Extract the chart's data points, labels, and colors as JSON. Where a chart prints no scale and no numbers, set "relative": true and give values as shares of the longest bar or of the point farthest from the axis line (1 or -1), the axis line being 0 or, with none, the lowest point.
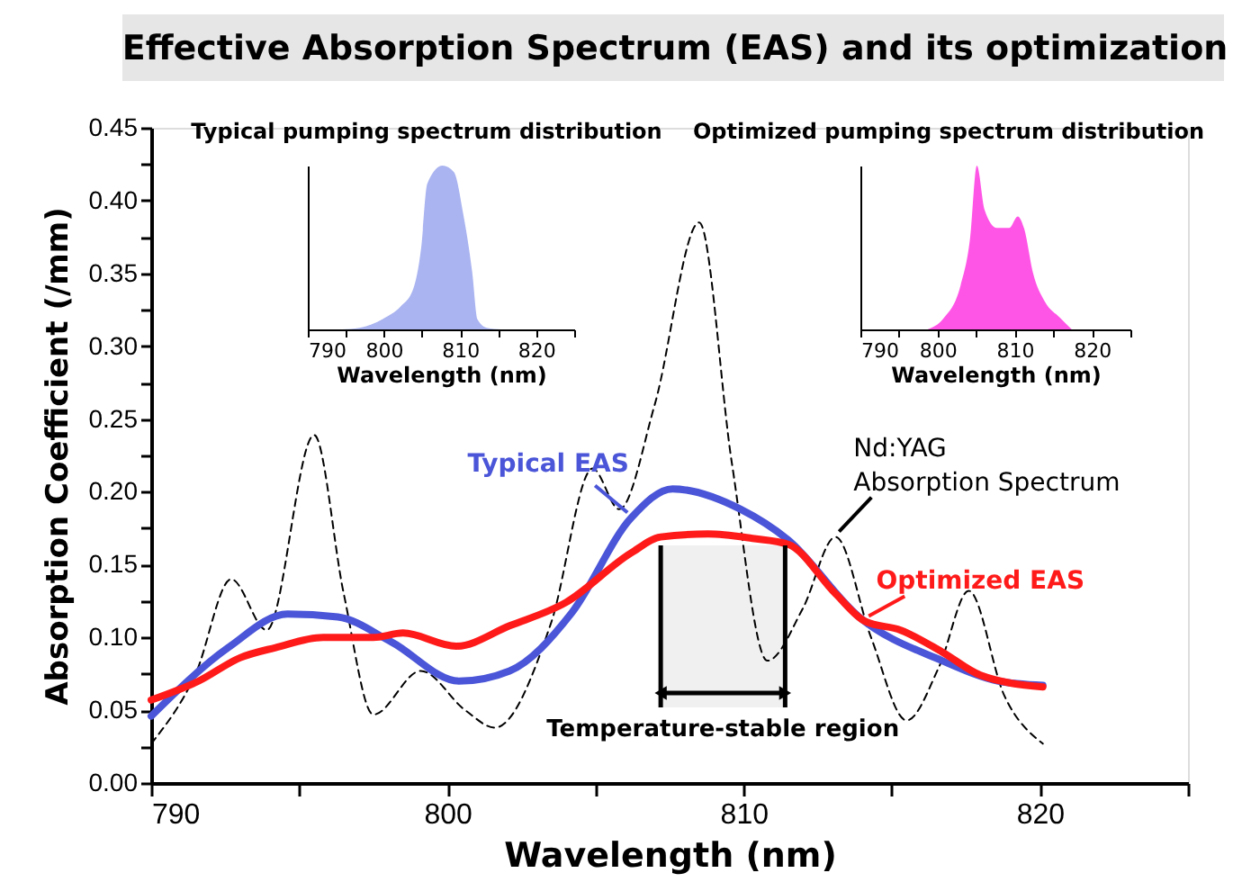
{
  "chart_data": [
    {
      "type": "line",
      "title": "Effective Absorption Spectrum (EAS) and its optimization",
      "xlabel": "Wavelength (nm)",
      "ylabel": "Absorption Coefficient (/mm)",
      "xlim": [
        790,
        825
      ],
      "xticks": [
        790,
        {
          "value": 795,
          "label": null
        },
        800,
        {
          "value": 805,
          "label": null
        },
        810,
        {
          "value": 815,
          "label": null
        },
        820,
        {
          "value": 825,
          "label": null
        }
      ],
      "ylim": [
        0,
        0.45
      ],
      "yticks": [
        {
          "value": 0,
          "label": "0.00"
        },
        {
          "value": 0.025,
          "label": null
        },
        {
          "value": 0.05,
          "label": "0.05"
        },
        {
          "value": 0.075,
          "label": null
        },
        {
          "value": 0.1,
          "label": "0.10"
        },
        {
          "value": 0.125,
          "label": null
        },
        {
          "value": 0.15,
          "label": "0.15"
        },
        {
          "value": 0.175,
          "label": null
        },
        {
          "value": 0.2,
          "label": "0.20"
        },
        {
          "value": 0.225,
          "label": null
        },
        {
          "value": 0.25,
          "label": "0.25"
        },
        {
          "value": 0.275,
          "label": null
        },
        {
          "value": 0.3,
          "label": "0.30"
        },
        {
          "value": 0.325,
          "label": null
        },
        {
          "value": 0.35,
          "label": "0.35"
        },
        {
          "value": 0.375,
          "label": null
        },
        {
          "value": 0.4,
          "label": "0.40"
        },
        {
          "value": 0.425,
          "label": null
        },
        {
          "value": 0.45,
          "label": "0.45"
        }
      ],
      "series": [
        {
          "name": "Nd:YAG\nAbsorption Spectrum",
          "color": "#000000",
          "line_style": "dashed",
          "x": [
            790,
            791.5,
            792.7,
            793.9,
            795.5,
            796.5,
            797.5,
            799.1,
            800.6,
            801.6,
            803.5,
            804.9,
            805.8,
            807.0,
            808.5,
            809.6,
            810.8,
            812.0,
            813.1,
            814.3,
            815.5,
            816.6,
            817.6,
            818.8,
            820.1
          ],
          "values": [
            0.027,
            0.075,
            0.14,
            0.105,
            0.239,
            0.13,
            0.047,
            0.077,
            0.05,
            0.038,
            0.11,
            0.216,
            0.188,
            0.26,
            0.385,
            0.22,
            0.084,
            0.12,
            0.169,
            0.1,
            0.043,
            0.08,
            0.132,
            0.06,
            0.027
          ]
        },
        {
          "name": "Typical EAS",
          "color": "#4a55d8",
          "line_style": "solid",
          "x": [
            790,
            792.6,
            794.6,
            796.3,
            798.1,
            800.4,
            802.1,
            804.2,
            806.2,
            807.6,
            809.9,
            811.5,
            813.9,
            816.7,
            818.6,
            820.1
          ],
          "values": [
            0.046,
            0.093,
            0.116,
            0.114,
            0.097,
            0.07,
            0.077,
            0.117,
            0.182,
            0.202,
            0.188,
            0.167,
            0.114,
            0.084,
            0.07,
            0.067
          ]
        },
        {
          "name": "Optimized EAS",
          "color": "#ff1a1a",
          "line_style": "solid",
          "x": [
            790,
            791.6,
            793.0,
            794.2,
            795.8,
            797.5,
            798.5,
            800.3,
            802.1,
            804.0,
            806.2,
            807.2,
            808.8,
            810.3,
            811.5,
            813.1,
            814.1,
            815.3,
            816.7,
            818.0,
            820.1
          ],
          "values": [
            0.057,
            0.07,
            0.086,
            0.093,
            0.1,
            0.1,
            0.103,
            0.094,
            0.108,
            0.124,
            0.158,
            0.169,
            0.171,
            0.168,
            0.164,
            0.13,
            0.111,
            0.105,
            0.09,
            0.074,
            0.066
          ]
        }
      ],
      "bands": [
        {
          "axis": "x",
          "from": 807.2,
          "to": 811.4,
          "label": "Temperature-stable region",
          "color": "#000000"
        }
      ]
    },
    {
      "type": "area",
      "relative": true,
      "title": "Typical pumping spectrum distribution",
      "xlabel": "Wavelength (nm)",
      "color": "#aab4f0",
      "xlim": [
        790,
        825
      ],
      "xticks": [
        790,
        {
          "value": 795,
          "label": null
        },
        800,
        {
          "value": 805,
          "label": null
        },
        810,
        {
          "value": 815,
          "label": null
        },
        820,
        {
          "value": 825,
          "label": null
        }
      ],
      "x": [
        794.5,
        796.8,
        799.9,
        802.2,
        803.8,
        804.9,
        805.7,
        807.7,
        809.2,
        810.4,
        811.6,
        812.3,
        813.5,
        815.4
      ],
      "values": [
        0,
        0.01,
        0.065,
        0.14,
        0.24,
        0.5,
        0.89,
        1.0,
        0.96,
        0.71,
        0.35,
        0.06,
        0.01,
        0
      ]
    },
    {
      "type": "area",
      "relative": true,
      "title": "Optimized pumping spectrum distribution",
      "xlabel": "Wavelength (nm)",
      "color": "#ff55e6",
      "xlim": [
        790,
        825
      ],
      "xticks": [
        790,
        {
          "value": 795,
          "label": null
        },
        800,
        {
          "value": 805,
          "label": null
        },
        810,
        {
          "value": 815,
          "label": null
        },
        820,
        {
          "value": 825,
          "label": null
        }
      ],
      "x": [
        798.7,
        800.7,
        803.0,
        804.2,
        805.1,
        806.1,
        807.7,
        809.3,
        810.4,
        811.2,
        812.4,
        813.9,
        815.9,
        817.4
      ],
      "values": [
        0,
        0.063,
        0.27,
        0.55,
        1.0,
        0.73,
        0.62,
        0.62,
        0.69,
        0.62,
        0.34,
        0.17,
        0.07,
        0
      ]
    }
  ]
}
